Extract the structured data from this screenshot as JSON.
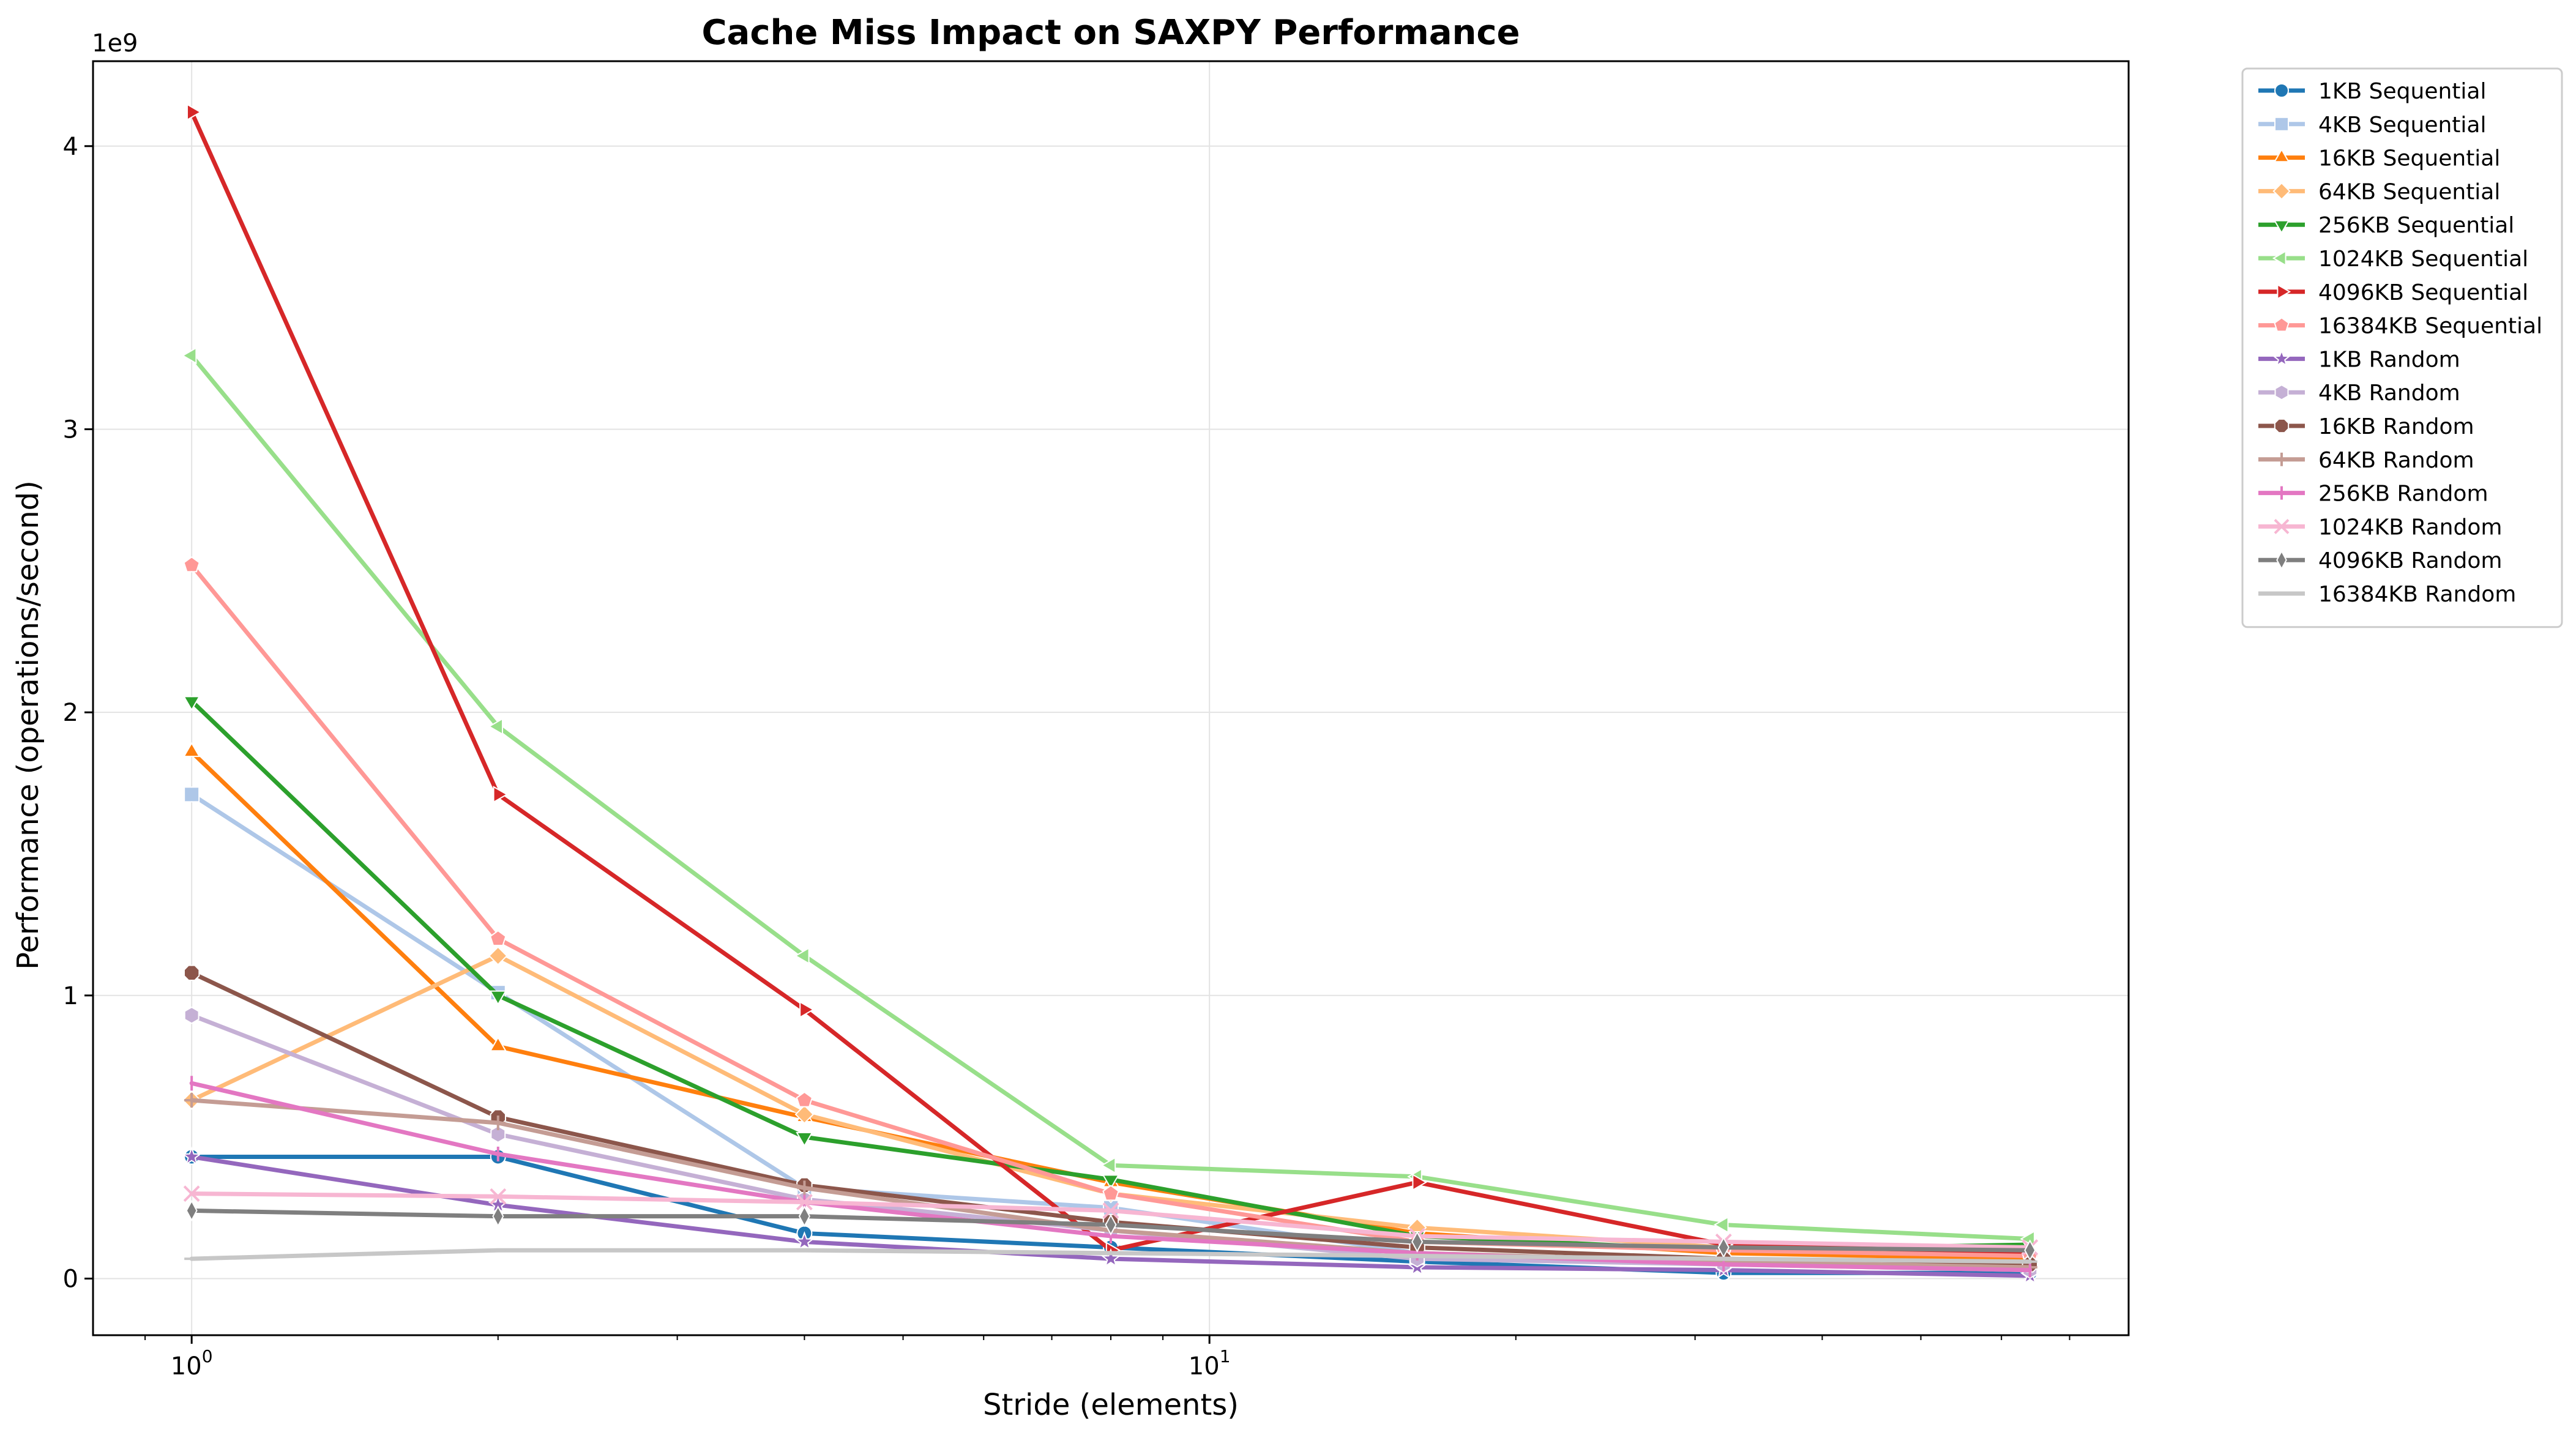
{
  "chart_data": {
    "type": "line",
    "title": "Cache Miss Impact on SAXPY Performance",
    "xlabel": "Stride (elements)",
    "ylabel": "Performance (operations/second)",
    "x_scale": "log",
    "y_offset_label": "1e9",
    "x": [
      1,
      2,
      4,
      8,
      16,
      32,
      64
    ],
    "xlim": [
      0.8,
      80
    ],
    "ylim": [
      -0.2,
      4.3
    ],
    "y_unit": "1e9 operations/second",
    "x_ticks": [
      {
        "value": 1,
        "base": "10",
        "exp": "0"
      },
      {
        "value": 10,
        "base": "10",
        "exp": "1"
      }
    ],
    "y_ticks": [
      0,
      1,
      2,
      3,
      4
    ],
    "grid": true,
    "legend_position": "outside-top-right",
    "series": [
      {
        "name": "1KB Sequential",
        "color": "#1f77b4",
        "marker": "circle",
        "values": [
          0.43,
          0.43,
          0.16,
          0.11,
          0.06,
          0.02,
          0.02
        ]
      },
      {
        "name": "4KB Sequential",
        "color": "#aec7e8",
        "marker": "square",
        "values": [
          1.71,
          1.01,
          0.32,
          0.25,
          0.09,
          0.05,
          0.04
        ]
      },
      {
        "name": "16KB Sequential",
        "color": "#ff7f0e",
        "marker": "triangle-up",
        "values": [
          1.86,
          0.82,
          0.57,
          0.34,
          0.16,
          0.09,
          0.07
        ]
      },
      {
        "name": "64KB Sequential",
        "color": "#ffbb78",
        "marker": "diamond",
        "values": [
          0.63,
          1.14,
          0.58,
          0.3,
          0.18,
          0.11,
          0.08
        ]
      },
      {
        "name": "256KB Sequential",
        "color": "#2ca02c",
        "marker": "triangle-down",
        "values": [
          2.04,
          1.0,
          0.5,
          0.35,
          0.15,
          0.1,
          0.12
        ]
      },
      {
        "name": "1024KB Sequential",
        "color": "#98df8a",
        "marker": "triangle-left",
        "values": [
          3.26,
          1.95,
          1.14,
          0.4,
          0.36,
          0.19,
          0.14
        ]
      },
      {
        "name": "4096KB Sequential",
        "color": "#d62728",
        "marker": "triangle-right",
        "values": [
          4.12,
          1.71,
          0.95,
          0.1,
          0.34,
          0.12,
          0.09
        ]
      },
      {
        "name": "16384KB Sequential",
        "color": "#ff9896",
        "marker": "pentagon",
        "values": [
          2.52,
          1.2,
          0.63,
          0.3,
          0.13,
          0.1,
          0.08
        ]
      },
      {
        "name": "1KB Random",
        "color": "#9467bd",
        "marker": "star",
        "values": [
          0.43,
          0.26,
          0.13,
          0.07,
          0.04,
          0.03,
          0.01
        ]
      },
      {
        "name": "4KB Random",
        "color": "#c5b0d5",
        "marker": "hexagon",
        "values": [
          0.93,
          0.51,
          0.28,
          0.17,
          0.07,
          0.05,
          0.03
        ]
      },
      {
        "name": "16KB Random",
        "color": "#8c564b",
        "marker": "octagon",
        "values": [
          1.08,
          0.57,
          0.33,
          0.2,
          0.11,
          0.07,
          0.05
        ]
      },
      {
        "name": "64KB Random",
        "color": "#c49c94",
        "marker": "plus",
        "values": [
          0.63,
          0.55,
          0.32,
          0.17,
          0.09,
          0.06,
          0.04
        ]
      },
      {
        "name": "256KB Random",
        "color": "#e377c2",
        "marker": "vline",
        "values": [
          0.69,
          0.44,
          0.27,
          0.15,
          0.09,
          0.05,
          0.03
        ]
      },
      {
        "name": "1024KB Random",
        "color": "#f7b6d2",
        "marker": "x",
        "values": [
          0.3,
          0.29,
          0.27,
          0.24,
          0.15,
          0.13,
          0.11
        ]
      },
      {
        "name": "4096KB Random",
        "color": "#7f7f7f",
        "marker": "thin-diamond",
        "values": [
          0.24,
          0.22,
          0.22,
          0.19,
          0.13,
          0.11,
          0.1
        ]
      },
      {
        "name": "16384KB Random",
        "color": "#c7c7c7",
        "marker": "hline",
        "values": [
          0.07,
          0.1,
          0.1,
          0.09,
          0.08,
          0.07,
          0.06
        ]
      }
    ]
  }
}
